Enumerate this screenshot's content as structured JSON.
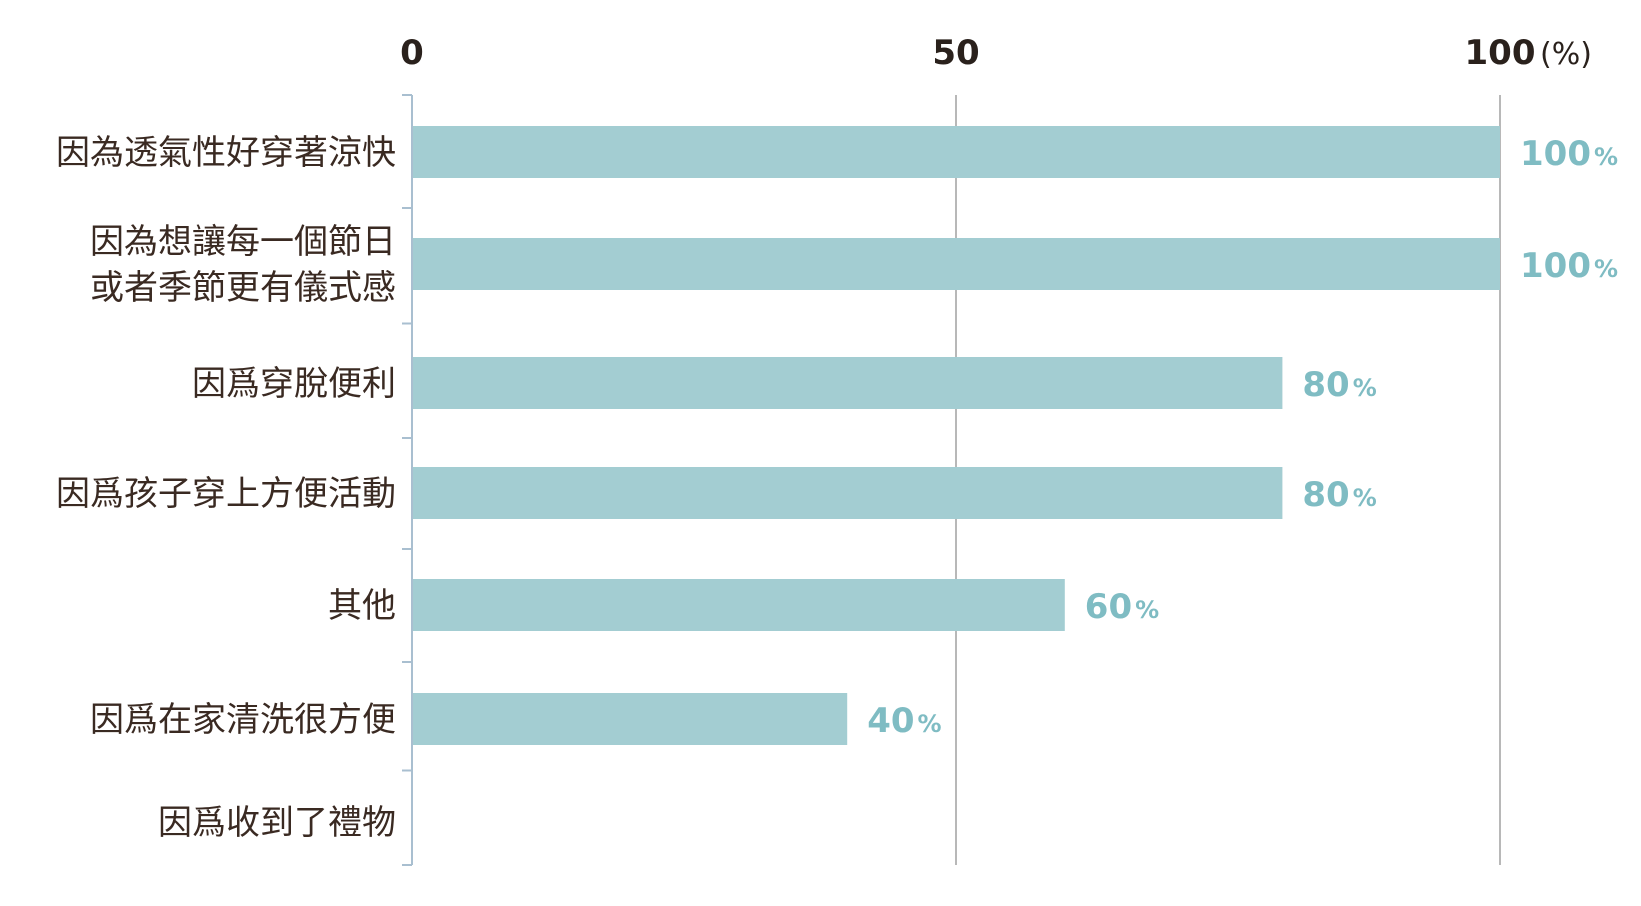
{
  "chart_data": {
    "type": "bar",
    "orientation": "horizontal",
    "categories": [
      [
        "因為透氣性好穿著涼快"
      ],
      [
        "因為想讓每一個節日",
        "或者季節更有儀式感"
      ],
      [
        "因爲穿脫便利"
      ],
      [
        "因爲孩子穿上方便活動"
      ],
      [
        "其他"
      ],
      [
        "因爲在家清洗很方便"
      ],
      [
        "因爲收到了禮物"
      ]
    ],
    "values": [
      100,
      100,
      80,
      80,
      60,
      40,
      0
    ],
    "value_labels": [
      "100",
      "100",
      "80",
      "80",
      "60",
      "40",
      ""
    ],
    "value_suffix": "%",
    "xlim": [
      0,
      100
    ],
    "x_ticks": [
      "0",
      "50",
      "100"
    ],
    "x_unit": "(%)",
    "grid": true,
    "axis_position": "top",
    "colors": {
      "bar": "#a3cdd2",
      "value_label": "#7fbcc3",
      "grid": "#b8b8b8",
      "axis": "#a9bfd0",
      "text": "#2a211c"
    }
  }
}
